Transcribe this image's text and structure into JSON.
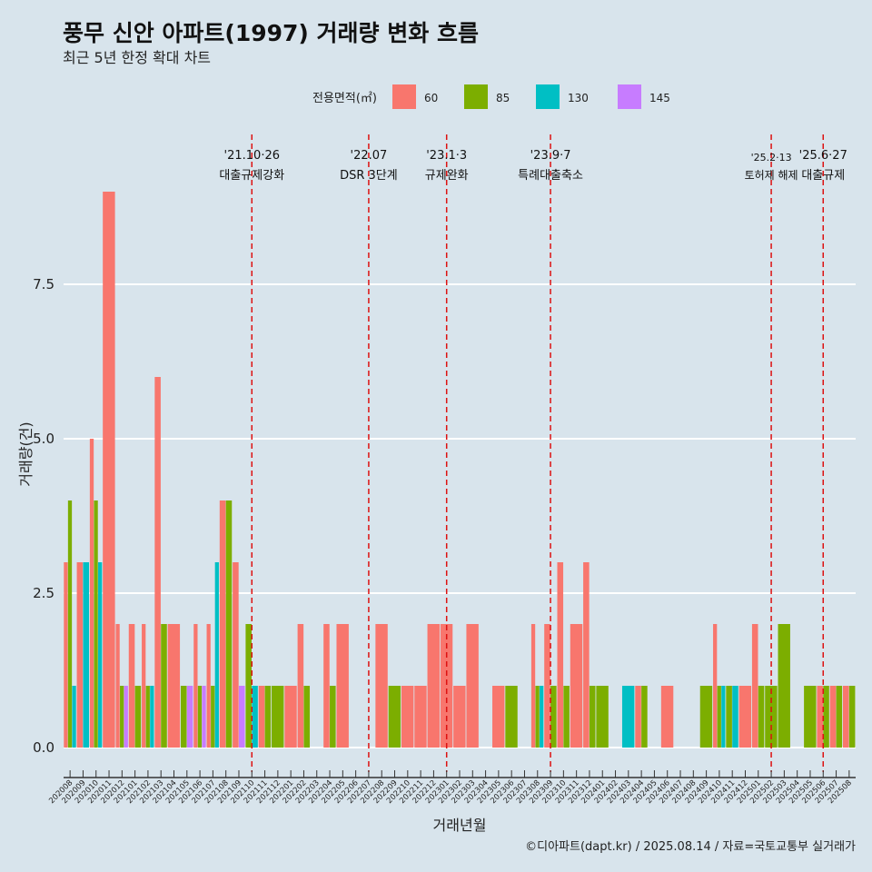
{
  "chart_data": {
    "type": "bar",
    "title": "풍무 신안 아파트(1997) 거래량 변화 흐름",
    "subtitle": "최근 5년 한정 확대 차트",
    "xlabel": "거래년월",
    "ylabel": "거래량(건)",
    "ylim": [
      -0.4,
      9.5
    ],
    "yticks": [
      "0.0",
      "2.5",
      "5.0",
      "7.5"
    ],
    "ytick_values": [
      0,
      2.5,
      5,
      7.5
    ],
    "legend": {
      "title": "전용면적(㎡)",
      "placement": "top"
    },
    "caption": "©디아파트(dapt.kr) / 2025.08.14 / 자료=국토교통부 실거래가",
    "categories": [
      "202008",
      "202009",
      "202010",
      "202011",
      "202012",
      "202101",
      "202102",
      "202103",
      "202104",
      "202105",
      "202106",
      "202107",
      "202108",
      "202109",
      "202110",
      "202111",
      "202112",
      "202201",
      "202202",
      "202203",
      "202204",
      "202205",
      "202206",
      "202207",
      "202208",
      "202209",
      "202210",
      "202211",
      "202212",
      "202301",
      "202302",
      "202303",
      "202304",
      "202305",
      "202306",
      "202307",
      "202308",
      "202309",
      "202310",
      "202311",
      "202312",
      "202401",
      "202402",
      "202403",
      "202404",
      "202405",
      "202406",
      "202407",
      "202408",
      "202409",
      "202410",
      "202411",
      "202412",
      "202501",
      "202502",
      "202503",
      "202504",
      "202505",
      "202506",
      "202507",
      "202508"
    ],
    "series": [
      {
        "name": "60",
        "color": "#f8766d",
        "values": [
          3,
          3,
          5,
          9,
          2,
          2,
          2,
          6,
          2,
          0,
          2,
          2,
          4,
          3,
          0,
          1,
          0,
          1,
          2,
          0,
          2,
          2,
          0,
          0,
          2,
          0,
          1,
          1,
          2,
          2,
          1,
          2,
          0,
          1,
          0,
          0,
          2,
          2,
          3,
          2,
          3,
          0,
          0,
          0,
          1,
          0,
          1,
          0,
          0,
          0,
          2,
          0,
          1,
          2,
          0,
          0,
          0,
          0,
          1,
          1,
          1
        ]
      },
      {
        "name": "85",
        "color": "#7cae00",
        "values": [
          4,
          0,
          4,
          0,
          1,
          1,
          1,
          2,
          0,
          1,
          1,
          1,
          4,
          0,
          2,
          1,
          1,
          0,
          1,
          0,
          1,
          0,
          0,
          0,
          0,
          1,
          0,
          0,
          0,
          0,
          0,
          0,
          0,
          0,
          1,
          0,
          1,
          1,
          1,
          0,
          1,
          1,
          0,
          0,
          1,
          0,
          0,
          0,
          0,
          1,
          1,
          1,
          0,
          1,
          1,
          2,
          0,
          1,
          1,
          1,
          1
        ]
      },
      {
        "name": "130",
        "color": "#00bfc4",
        "values": [
          1,
          3,
          3,
          0,
          0,
          0,
          1,
          0,
          0,
          0,
          0,
          3,
          0,
          0,
          1,
          0,
          0,
          0,
          0,
          0,
          0,
          0,
          0,
          0,
          0,
          0,
          0,
          0,
          0,
          0,
          0,
          0,
          0,
          0,
          0,
          0,
          1,
          0,
          0,
          0,
          0,
          0,
          0,
          1,
          0,
          0,
          0,
          0,
          0,
          0,
          1,
          1,
          0,
          0,
          0,
          0,
          0,
          0,
          0,
          0,
          0
        ]
      },
      {
        "name": "145",
        "color": "#c77cff",
        "values": [
          0,
          0,
          0,
          0,
          1,
          0,
          0,
          0,
          0,
          1,
          1,
          0,
          0,
          1,
          0,
          0,
          0,
          0,
          0,
          0,
          0,
          0,
          0,
          0,
          0,
          0,
          0,
          0,
          0,
          0,
          0,
          0,
          0,
          0,
          0,
          0,
          0,
          0,
          0,
          0,
          0,
          0,
          0,
          0,
          0,
          0,
          0,
          0,
          0,
          0,
          0,
          0,
          0,
          0,
          0,
          0,
          0,
          0,
          0,
          0,
          0
        ]
      }
    ],
    "annotations": [
      {
        "date": "'21.10·26",
        "label": "대출규제강화",
        "x": "202110"
      },
      {
        "date": "'22.07",
        "label": "DSR 3단계",
        "x": "202207"
      },
      {
        "date": "'23.1·3",
        "label": "규제완화",
        "x": "202301"
      },
      {
        "date": "'23.9·7",
        "label": "특례대출축소",
        "x": "202309"
      },
      {
        "date": "'25.2·13",
        "label": "토허제 해제",
        "x": "202502"
      },
      {
        "date": "'25.6·27",
        "label": "대출규제",
        "x": "202506"
      }
    ],
    "grid": true,
    "colors": {
      "background": "#d8e4ec",
      "gridline": "#ffffff",
      "annotation_line": "#dd1111"
    }
  }
}
